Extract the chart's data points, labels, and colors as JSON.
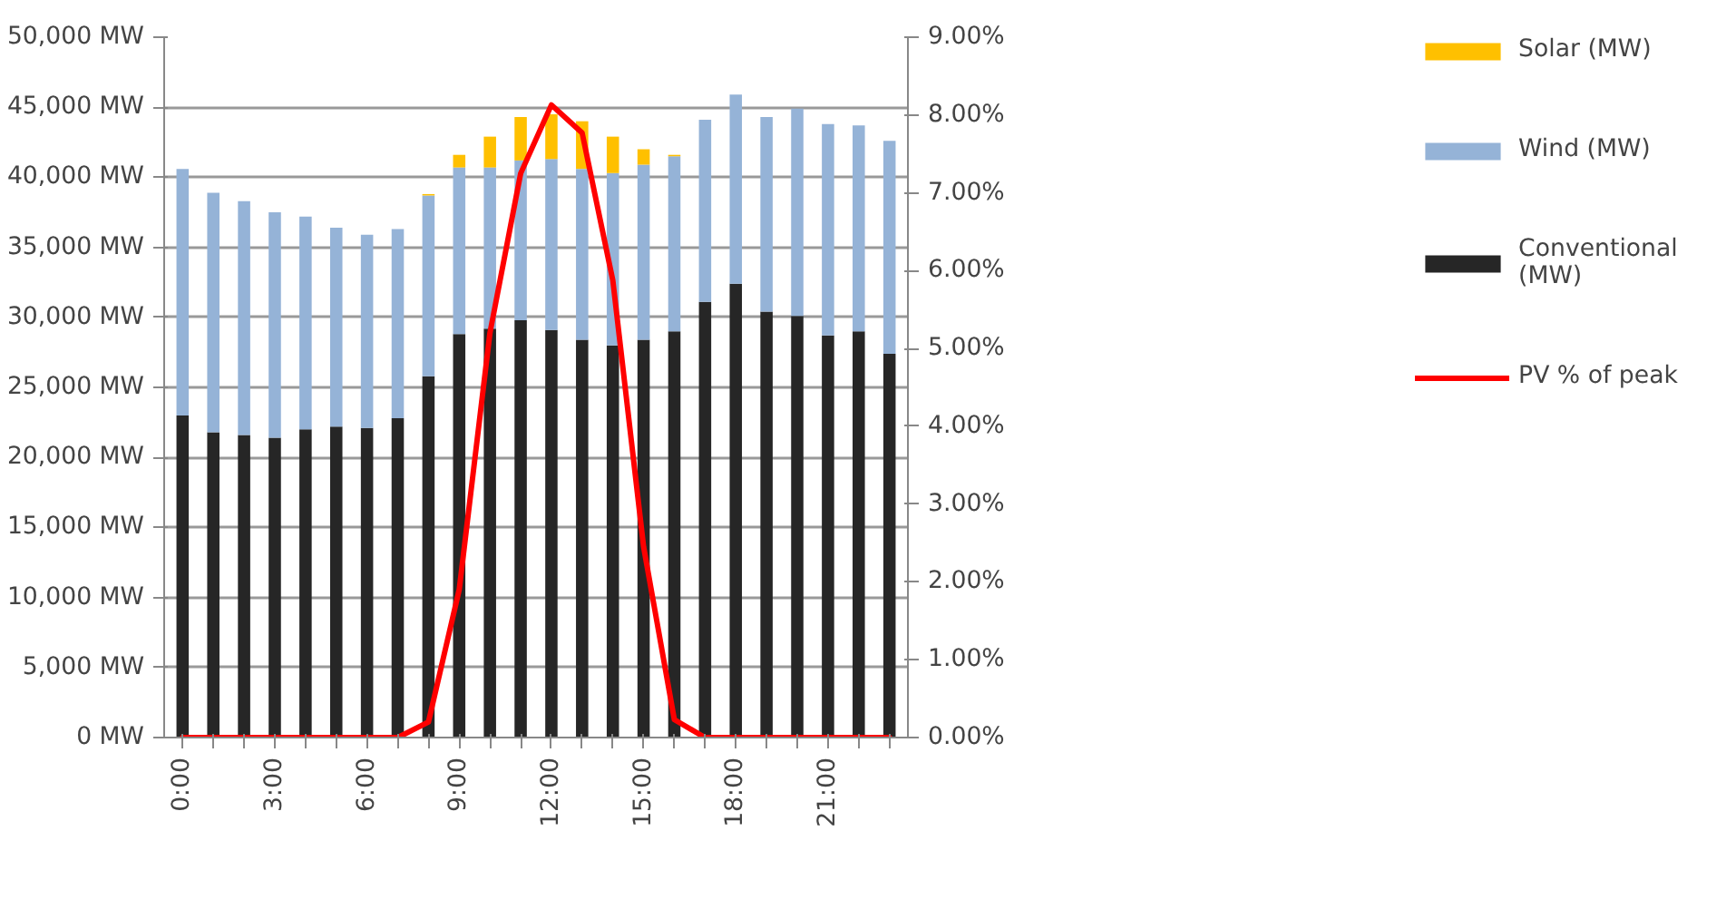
{
  "chart_data": {
    "type": "bar",
    "stacked": true,
    "categories": [
      "0:00",
      null,
      null,
      "3:00",
      null,
      null,
      "6:00",
      null,
      null,
      "9:00",
      null,
      null,
      "12:00",
      null,
      null,
      "15:00",
      null,
      null,
      "18:00",
      null,
      null,
      "21:00",
      null,
      null
    ],
    "series": [
      {
        "name": "Conventional (MW)",
        "color": "#262626",
        "values": [
          23000,
          21800,
          21600,
          21400,
          22000,
          22200,
          22100,
          22800,
          25800,
          28800,
          29200,
          29800,
          29100,
          28400,
          28000,
          28400,
          29000,
          31100,
          32400,
          30400,
          30100,
          28700,
          29000,
          27400
        ]
      },
      {
        "name": "Wind (MW)",
        "color": "#95b3d7",
        "values": [
          17600,
          17100,
          16700,
          16100,
          15200,
          14200,
          13800,
          13500,
          12900,
          11900,
          11500,
          11400,
          12200,
          12200,
          12300,
          12500,
          12500,
          13000,
          13500,
          13900,
          14800,
          15100,
          14700,
          15200
        ]
      },
      {
        "name": "Solar (MW)",
        "color": "#ffc000",
        "values": [
          0,
          0,
          0,
          0,
          0,
          0,
          0,
          0,
          100,
          900,
          2200,
          3100,
          3200,
          3400,
          2600,
          1100,
          100,
          0,
          0,
          0,
          0,
          0,
          0,
          0
        ]
      },
      {
        "name": "PV % of peak",
        "type": "line",
        "axis": "y2",
        "color": "#ff0000",
        "values": [
          0,
          0,
          0,
          0,
          0,
          0,
          0,
          0,
          0.2,
          1.9,
          5.2,
          7.25,
          8.13,
          7.77,
          5.87,
          2.45,
          0.23,
          0,
          0,
          0,
          0,
          0,
          0,
          0
        ]
      }
    ],
    "ylim": [
      0,
      50000
    ],
    "yticks": [
      {
        "value": 0,
        "label": "0 MW"
      },
      {
        "value": 5000,
        "label": "5,000 MW"
      },
      {
        "value": 10000,
        "label": "10,000 MW"
      },
      {
        "value": 15000,
        "label": "15,000 MW"
      },
      {
        "value": 20000,
        "label": "20,000 MW"
      },
      {
        "value": 25000,
        "label": "25,000 MW"
      },
      {
        "value": 30000,
        "label": "30,000 MW"
      },
      {
        "value": 35000,
        "label": "35,000 MW"
      },
      {
        "value": 40000,
        "label": "40,000 MW"
      },
      {
        "value": 45000,
        "label": "45,000 MW"
      },
      {
        "value": 50000,
        "label": "50,000 MW"
      }
    ],
    "y2lim": [
      0,
      9
    ],
    "y2ticks": [
      {
        "value": 0,
        "label": "0.00%"
      },
      {
        "value": 1,
        "label": "1.00%"
      },
      {
        "value": 2,
        "label": "2.00%"
      },
      {
        "value": 3,
        "label": "3.00%"
      },
      {
        "value": 4,
        "label": "4.00%"
      },
      {
        "value": 5,
        "label": "5.00%"
      },
      {
        "value": 6,
        "label": "6.00%"
      },
      {
        "value": 7,
        "label": "7.00%"
      },
      {
        "value": 8,
        "label": "8.00%"
      },
      {
        "value": 9,
        "label": "9.00%"
      }
    ],
    "grid": "y",
    "legend": "right"
  }
}
